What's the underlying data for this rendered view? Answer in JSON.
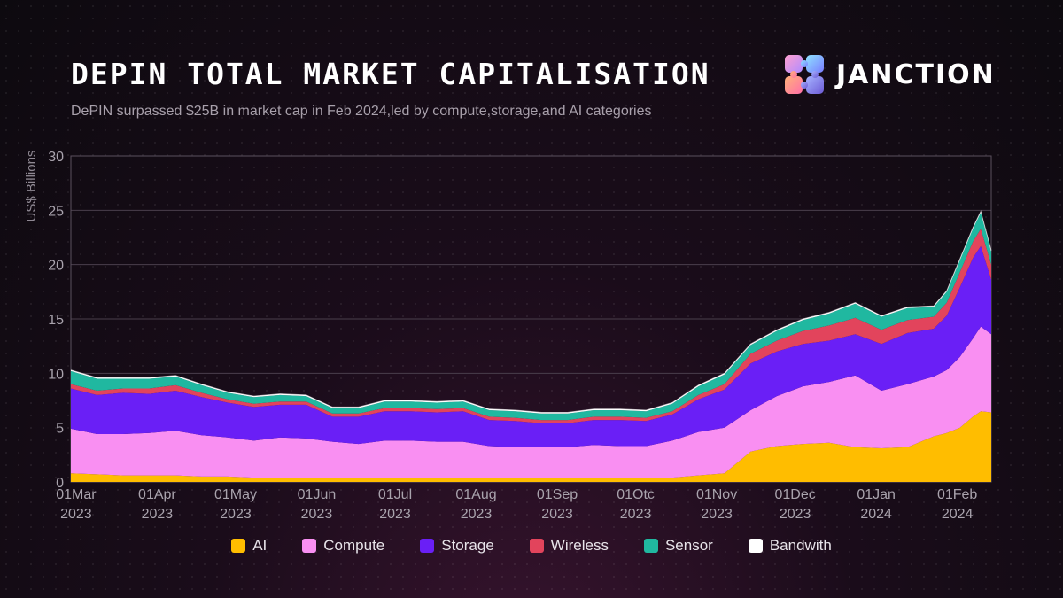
{
  "header": {
    "title": "DEPIN TOTAL MARKET CAPITALISATION",
    "subtitle": "DePIN surpassed $25B in market cap in Feb 2024,led by compute,storage,and AI categories"
  },
  "brand": {
    "name": "JANCTION",
    "logo_icon": "puzzle-logo-icon"
  },
  "colors": {
    "AI": "#ffbd00",
    "Compute": "#f98ff2",
    "Storage": "#6a1ff6",
    "Wireless": "#e2445c",
    "Sensor": "#20b8a0",
    "Bandwith": "#ffffff",
    "grid": "#4a3f4c",
    "frame": "#5a505e"
  },
  "chart_data": {
    "type": "area",
    "stacked": true,
    "title": "DEPIN TOTAL MARKET CAPITALISATION",
    "ylabel": "US$ Billions",
    "xlabel": "",
    "ylim": [
      0,
      30
    ],
    "yticks": [
      0,
      5,
      10,
      15,
      20,
      25,
      30
    ],
    "grid": true,
    "legend_position": "bottom",
    "x_range_days": [
      0,
      352
    ],
    "x_ticks": [
      {
        "day": 2,
        "line1": "01Mar",
        "line2": "2023"
      },
      {
        "day": 33,
        "line1": "01Apr",
        "line2": "2023"
      },
      {
        "day": 63,
        "line1": "01May",
        "line2": "2023"
      },
      {
        "day": 94,
        "line1": "01Jun",
        "line2": "2023"
      },
      {
        "day": 124,
        "line1": "01Jul",
        "line2": "2023"
      },
      {
        "day": 155,
        "line1": "01Aug",
        "line2": "2023"
      },
      {
        "day": 186,
        "line1": "01Sep",
        "line2": "2023"
      },
      {
        "day": 216,
        "line1": "01Otc",
        "line2": "2023"
      },
      {
        "day": 247,
        "line1": "01Nov",
        "line2": "2023"
      },
      {
        "day": 277,
        "line1": "01Dec",
        "line2": "2023"
      },
      {
        "day": 308,
        "line1": "01Jan",
        "line2": "2024"
      },
      {
        "day": 339,
        "line1": "01Feb",
        "line2": "2024"
      }
    ],
    "x_days": [
      0,
      10,
      20,
      30,
      40,
      50,
      60,
      70,
      80,
      90,
      100,
      110,
      120,
      130,
      140,
      150,
      160,
      170,
      180,
      190,
      200,
      210,
      220,
      230,
      240,
      250,
      260,
      270,
      280,
      290,
      300,
      310,
      320,
      330,
      335,
      340,
      345,
      348,
      352
    ],
    "series": [
      {
        "name": "AI",
        "values": [
          0.8,
          0.7,
          0.6,
          0.6,
          0.6,
          0.5,
          0.5,
          0.4,
          0.4,
          0.4,
          0.4,
          0.4,
          0.4,
          0.4,
          0.4,
          0.4,
          0.4,
          0.4,
          0.4,
          0.4,
          0.4,
          0.4,
          0.4,
          0.4,
          0.6,
          0.8,
          2.8,
          3.3,
          3.5,
          3.6,
          3.2,
          3.1,
          3.2,
          4.2,
          4.5,
          5.0,
          6.0,
          6.5,
          6.4
        ]
      },
      {
        "name": "Compute",
        "values": [
          4.1,
          3.7,
          3.8,
          3.9,
          4.1,
          3.8,
          3.6,
          3.4,
          3.7,
          3.6,
          3.3,
          3.1,
          3.4,
          3.4,
          3.3,
          3.3,
          2.9,
          2.8,
          2.8,
          2.8,
          3.0,
          2.9,
          2.9,
          3.4,
          4.0,
          4.2,
          3.8,
          4.6,
          5.3,
          5.6,
          6.6,
          5.3,
          5.8,
          5.5,
          5.8,
          6.5,
          7.2,
          7.8,
          7.2
        ]
      },
      {
        "name": "Storage",
        "values": [
          3.7,
          3.6,
          3.8,
          3.6,
          3.7,
          3.5,
          3.2,
          3.1,
          3.0,
          3.1,
          2.3,
          2.5,
          2.7,
          2.7,
          2.7,
          2.8,
          2.4,
          2.4,
          2.2,
          2.2,
          2.3,
          2.4,
          2.3,
          2.4,
          3.0,
          3.5,
          4.3,
          4.1,
          3.9,
          3.8,
          3.8,
          4.3,
          4.7,
          4.4,
          5.0,
          6.4,
          7.4,
          7.4,
          5.0
        ]
      },
      {
        "name": "Wireless",
        "values": [
          0.4,
          0.4,
          0.4,
          0.5,
          0.5,
          0.4,
          0.3,
          0.3,
          0.3,
          0.3,
          0.3,
          0.3,
          0.3,
          0.3,
          0.3,
          0.3,
          0.3,
          0.3,
          0.3,
          0.3,
          0.3,
          0.3,
          0.3,
          0.3,
          0.4,
          0.5,
          0.9,
          1.0,
          1.2,
          1.4,
          1.5,
          1.3,
          1.2,
          1.1,
          1.2,
          1.4,
          1.5,
          1.6,
          1.4
        ]
      },
      {
        "name": "Sensor",
        "values": [
          1.2,
          1.1,
          0.9,
          0.9,
          0.8,
          0.7,
          0.6,
          0.6,
          0.6,
          0.5,
          0.5,
          0.5,
          0.6,
          0.6,
          0.6,
          0.6,
          0.6,
          0.6,
          0.6,
          0.6,
          0.6,
          0.6,
          0.6,
          0.7,
          0.8,
          0.9,
          0.8,
          0.9,
          1.0,
          1.1,
          1.3,
          1.2,
          1.1,
          0.9,
          1.0,
          1.1,
          1.2,
          1.5,
          1.2
        ]
      },
      {
        "name": "Bandwith",
        "values": [
          0.1,
          0.1,
          0.1,
          0.1,
          0.1,
          0.1,
          0.1,
          0.1,
          0.1,
          0.1,
          0.1,
          0.1,
          0.1,
          0.1,
          0.1,
          0.1,
          0.1,
          0.1,
          0.1,
          0.1,
          0.1,
          0.1,
          0.1,
          0.1,
          0.1,
          0.1,
          0.1,
          0.1,
          0.1,
          0.1,
          0.1,
          0.1,
          0.1,
          0.1,
          0.1,
          0.1,
          0.1,
          0.1,
          0.1
        ]
      }
    ]
  }
}
